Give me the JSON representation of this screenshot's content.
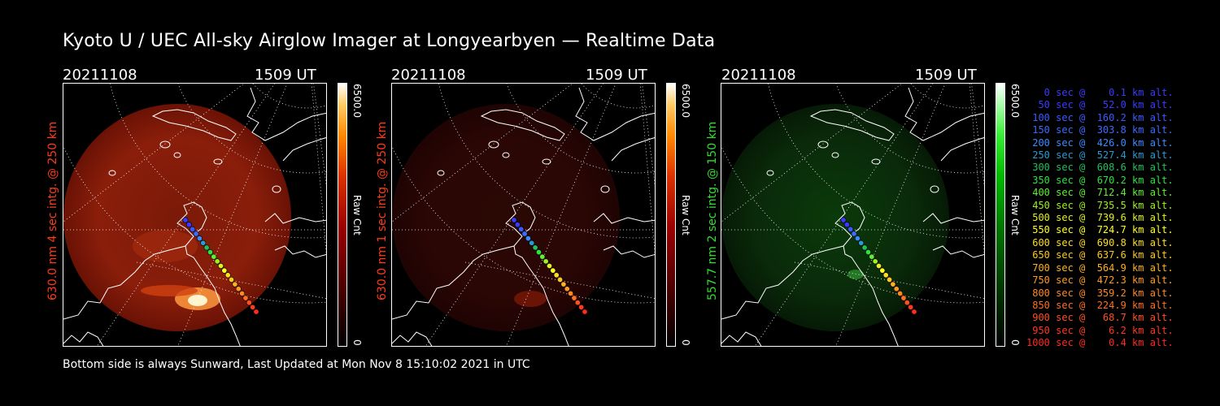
{
  "title": "Kyoto U / UEC All-sky Airglow Imager at Longyearbyen — Realtime Data",
  "footer": "Bottom side is always Sunward, Last Updated at Mon Nov  8 15:10:02 2021 in UTC",
  "panels": [
    {
      "date": "20211108",
      "time": "1509 UT",
      "ylabel": "630.0 nm 4 sec intg. @ 250 km",
      "label_color": "#ff3b1a",
      "cb_max": "6500.0",
      "cb_unit": "Raw Cnt",
      "cb_min": "0",
      "colormap": "red"
    },
    {
      "date": "20211108",
      "time": "1509 UT",
      "ylabel": "630.0 nm 1 sec intg. @ 250 km",
      "label_color": "#ff3b1a",
      "cb_max": "6500.0",
      "cb_unit": "Raw Cnt",
      "cb_min": "0",
      "colormap": "red"
    },
    {
      "date": "20211108",
      "time": "1509 UT",
      "ylabel": "557.7 nm 2 sec intg. @ 150 km",
      "label_color": "#33dd33",
      "cb_max": "6500.0",
      "cb_unit": "Raw Cnt",
      "cb_min": "0",
      "colormap": "green"
    }
  ],
  "legend": [
    {
      "text": "   0 sec @    0.1 km alt.",
      "color": "#3b3bff"
    },
    {
      "text": "  50 sec @   52.0 km alt.",
      "color": "#3b3bff"
    },
    {
      "text": " 100 sec @  160.2 km alt.",
      "color": "#3b5bff"
    },
    {
      "text": " 150 sec @  303.8 km alt.",
      "color": "#3b6bff"
    },
    {
      "text": " 200 sec @  426.0 km alt.",
      "color": "#3b8bff"
    },
    {
      "text": " 250 sec @  527.4 km alt.",
      "color": "#2a9ad0"
    },
    {
      "text": " 300 sec @  608.6 km alt.",
      "color": "#20c060"
    },
    {
      "text": " 350 sec @  670.2 km alt.",
      "color": "#30e040"
    },
    {
      "text": " 400 sec @  712.4 km alt.",
      "color": "#60f030"
    },
    {
      "text": " 450 sec @  735.5 km alt.",
      "color": "#a0f020"
    },
    {
      "text": " 500 sec @  739.6 km alt.",
      "color": "#e0f020"
    },
    {
      "text": " 550 sec @  724.7 km alt.",
      "color": "#ffff20"
    },
    {
      "text": " 600 sec @  690.8 km alt.",
      "color": "#ffdd20"
    },
    {
      "text": " 650 sec @  637.6 km alt.",
      "color": "#ffc820"
    },
    {
      "text": " 700 sec @  564.9 km alt.",
      "color": "#ffb020"
    },
    {
      "text": " 750 sec @  472.3 km alt.",
      "color": "#ff9a20"
    },
    {
      "text": " 800 sec @  359.2 km alt.",
      "color": "#ff8820"
    },
    {
      "text": " 850 sec @  224.9 km alt.",
      "color": "#ff7020"
    },
    {
      "text": " 900 sec @   68.7 km alt.",
      "color": "#ff5020"
    },
    {
      "text": " 950 sec @    6.2 km alt.",
      "color": "#ff3820"
    },
    {
      "text": "1000 sec @    0.4 km alt.",
      "color": "#ff2a20"
    }
  ]
}
